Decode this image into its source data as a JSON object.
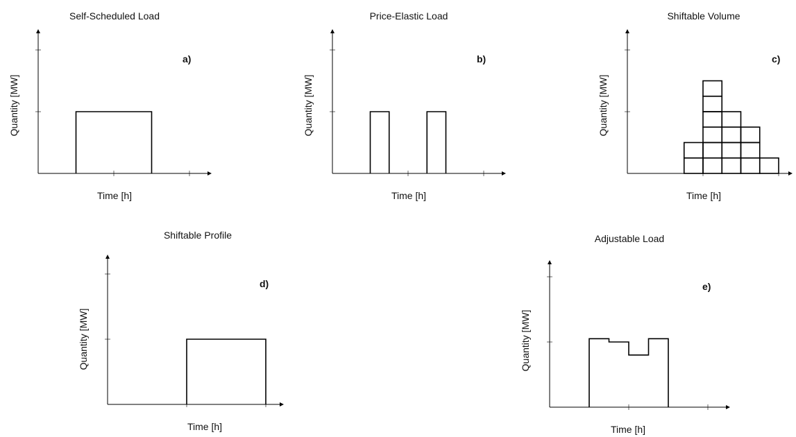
{
  "panels": [
    {
      "id": "a",
      "title": "Self-Scheduled Load",
      "tag": "a)",
      "xlabel": "Time [h]",
      "ylabel": "Quantity [MW]",
      "profile": {
        "type": "blocks",
        "blocks": [
          {
            "start": 0.5,
            "end": 1.5,
            "level": 1.0
          }
        ]
      }
    },
    {
      "id": "b",
      "title": "Price-Elastic Load",
      "tag": "b)",
      "xlabel": "Time [h]",
      "ylabel": "Quantity [MW]",
      "profile": {
        "type": "blocks",
        "blocks": [
          {
            "start": 0.5,
            "end": 0.75,
            "level": 1.0
          },
          {
            "start": 1.25,
            "end": 1.5,
            "level": 1.0
          }
        ]
      }
    },
    {
      "id": "c",
      "title": "Shiftable Volume",
      "tag": "c)",
      "xlabel": "Time [h]",
      "ylabel": "Quantity [MW]",
      "profile": {
        "type": "grid",
        "x_start": 0.75,
        "cell_width": 0.25,
        "cell_height": 0.25,
        "columns": [
          2,
          6,
          4,
          3,
          1
        ]
      }
    },
    {
      "id": "d",
      "title": "Shiftable Profile",
      "tag": "d)",
      "xlabel": "Time [h]",
      "ylabel": "Quantity [MW]",
      "profile": {
        "type": "blocks",
        "blocks": [
          {
            "start": 1.0,
            "end": 2.0,
            "level": 1.0
          }
        ]
      }
    },
    {
      "id": "e",
      "title": "Adjustable Load",
      "tag": "e)",
      "xlabel": "Time [h]",
      "ylabel": "Quantity [MW]",
      "profile": {
        "type": "steps",
        "start": 0.5,
        "end": 1.5,
        "steps": [
          {
            "from": 0.5,
            "to": 0.75,
            "level": 1.05
          },
          {
            "from": 0.75,
            "to": 1.0,
            "level": 1.0
          },
          {
            "from": 1.0,
            "to": 1.25,
            "level": 0.8
          },
          {
            "from": 1.25,
            "to": 1.5,
            "level": 1.05
          }
        ]
      }
    }
  ]
}
